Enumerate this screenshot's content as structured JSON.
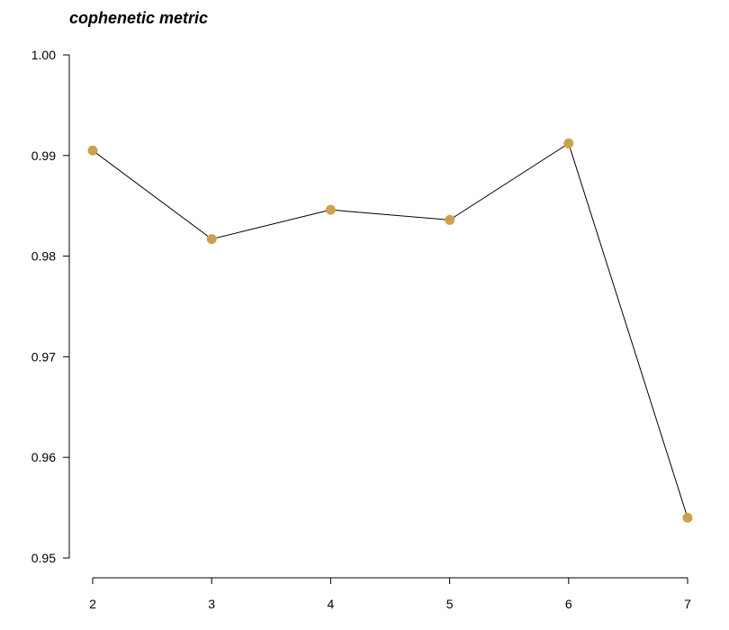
{
  "chart_data": {
    "type": "line",
    "title": "cophenetic metric",
    "xlabel": "",
    "ylabel": "",
    "x": [
      2,
      3,
      4,
      5,
      6,
      7
    ],
    "x_tick_labels": [
      "2",
      "3",
      "4",
      "5",
      "6",
      "7"
    ],
    "y_ticks": [
      0.95,
      0.96,
      0.97,
      0.98,
      0.99,
      1.0
    ],
    "y_tick_labels": [
      "0.95",
      "0.96",
      "0.97",
      "0.98",
      "0.99",
      "1.00"
    ],
    "ylim": [
      0.95,
      1.0
    ],
    "xlim": [
      2,
      7
    ],
    "series": [
      {
        "values": [
          0.9905,
          0.9817,
          0.9846,
          0.9836,
          0.9912,
          0.954
        ]
      }
    ],
    "grid": false,
    "marker_color": "#CCA14E",
    "line_color": "#000000"
  }
}
